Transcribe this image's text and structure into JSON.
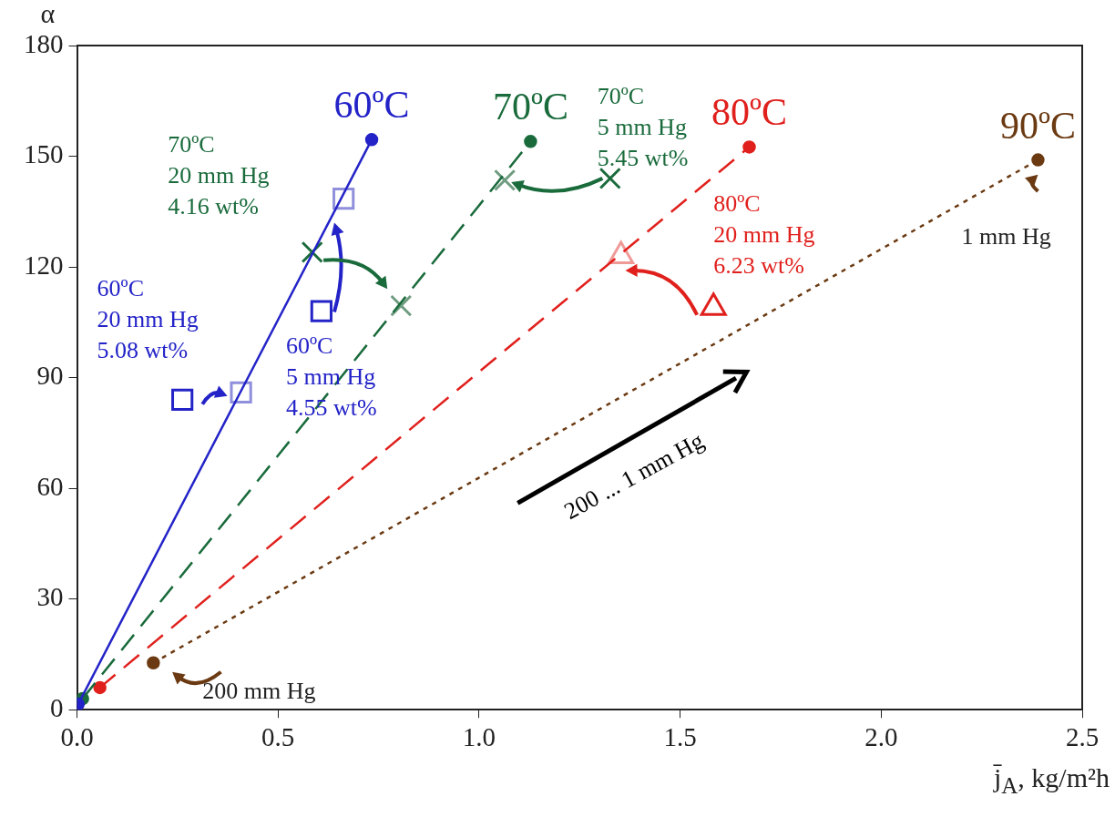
{
  "chart_data": {
    "type": "line",
    "ylabel": "α",
    "xlabel": "j̄$_{A}$, kg/m²h",
    "xlim": [
      0,
      2.5
    ],
    "ylim": [
      0,
      180
    ],
    "xticks": [
      {
        "value": 0,
        "label": "0.0"
      },
      0.5,
      {
        "value": 1,
        "label": "1.0"
      },
      1.5,
      {
        "value": 2,
        "label": "2.0"
      },
      2.5
    ],
    "yticks": [
      0,
      30,
      60,
      90,
      120,
      150,
      180
    ],
    "series": [
      {
        "name": "60ºC",
        "color": "#2323c8",
        "x": [
          0.003,
          0.733
        ],
        "values": [
          1.5,
          154.5
        ],
        "line_style": "solid",
        "marker": "circle"
      },
      {
        "name": "70ºC",
        "color": "#1a6b3c",
        "x": [
          0.014,
          1.128
        ],
        "values": [
          3,
          154
        ],
        "line_style": "dashed",
        "marker": "circle"
      },
      {
        "name": "80ºC",
        "color": "#e0201c",
        "x": [
          0.057,
          1.672
        ],
        "values": [
          6,
          152.5
        ],
        "line_style": "dashed",
        "marker": "circle"
      },
      {
        "name": "90ºC",
        "color": "#6b3a12",
        "x": [
          0.19,
          2.39
        ],
        "values": [
          12.7,
          149
        ],
        "line_style": "dotted",
        "marker": "circle"
      },
      {
        "type": "scatter",
        "color": "#2323c8",
        "x": [
          0.262,
          0.608
        ],
        "values": [
          84,
          108
        ],
        "marker": "square"
      },
      {
        "type": "scatter",
        "color": "#8f8fdc",
        "x": [
          0.408,
          0.663
        ],
        "values": [
          86,
          138.5
        ],
        "marker": "square"
      },
      {
        "type": "scatter",
        "color": "#1a6b3c",
        "x": [
          0.585,
          1.326
        ],
        "values": [
          124,
          144
        ],
        "marker": "cross"
      },
      {
        "type": "scatter",
        "color": "#6f9c80",
        "x": [
          0.806,
          1.064
        ],
        "values": [
          109.5,
          143.5
        ],
        "marker": "cross"
      },
      {
        "type": "scatter",
        "color": "#e0201c",
        "x": [
          1.583
        ],
        "values": [
          109
        ],
        "marker": "triangle"
      },
      {
        "type": "scatter",
        "color": "#f09a98",
        "x": [
          1.353
        ],
        "values": [
          123
        ],
        "marker": "triangle"
      }
    ],
    "annotations": [
      "70ºC\n20 mm Hg\n4.16 wt%",
      "60ºC\n20 mm Hg\n5.08 wt%",
      "60ºC\n5 mm Hg\n4.55 wt%",
      "70ºC\n5 mm Hg\n5.45 wt%",
      "80ºC\n20 mm Hg\n6.23 wt%",
      "1 mm Hg",
      "200 mm Hg",
      "200 ... 1 mm Hg"
    ]
  }
}
